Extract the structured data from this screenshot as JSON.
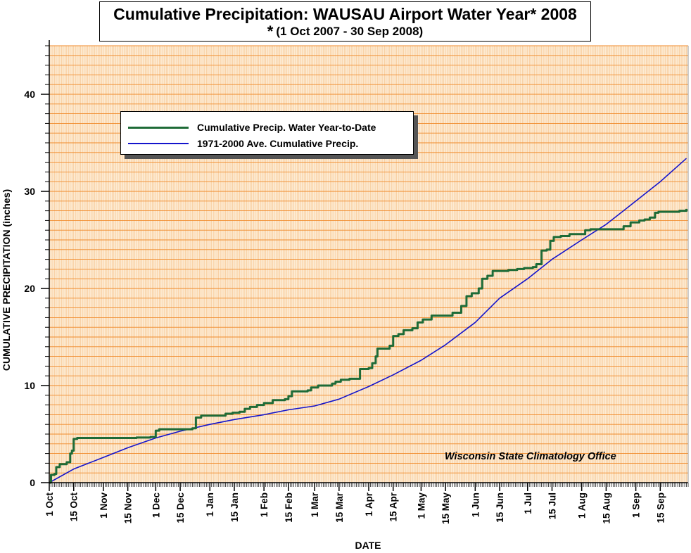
{
  "title": "Cumulative Precipitation: WAUSAU Airport Water Year* 2008",
  "subtitle_marker": "*",
  "subtitle": "(1 Oct 2007 - 30 Sep 2008)",
  "credit": "Wisconsin State Climatology Office",
  "colors": {
    "plot_background": "#fdebd3",
    "grid_vertical": "#f6c28a",
    "grid_horizontal": "#f08a2a",
    "observed": "#1e6b37",
    "normal": "#1414cc"
  },
  "chart_data": {
    "type": "line",
    "title": "Cumulative Precipitation: WAUSAU Airport Water Year* 2008",
    "subtitle": "(1 Oct 2007 - 30 Sep 2008)",
    "xlabel": "DATE",
    "ylabel": "CUMULATIVE PRECIPITATION (inches)",
    "ylim": [
      0,
      45
    ],
    "y_ticks": [
      0,
      10,
      20,
      30,
      40
    ],
    "x_range": [
      "2007-10-01",
      "2008-09-30"
    ],
    "x_ticks": [
      {
        "date": "2007-10-01",
        "label": "1 Oct"
      },
      {
        "date": "2007-10-15",
        "label": "15 Oct"
      },
      {
        "date": "2007-11-01",
        "label": "1 Nov"
      },
      {
        "date": "2007-11-15",
        "label": "15 Nov"
      },
      {
        "date": "2007-12-01",
        "label": "1 Dec"
      },
      {
        "date": "2007-12-15",
        "label": "15 Dec"
      },
      {
        "date": "2008-01-01",
        "label": "1 Jan"
      },
      {
        "date": "2008-01-15",
        "label": "15 Jan"
      },
      {
        "date": "2008-02-01",
        "label": "1 Feb"
      },
      {
        "date": "2008-02-15",
        "label": "15 Feb"
      },
      {
        "date": "2008-03-01",
        "label": "1 Mar"
      },
      {
        "date": "2008-03-15",
        "label": "15 Mar"
      },
      {
        "date": "2008-04-01",
        "label": "1 Apr"
      },
      {
        "date": "2008-04-15",
        "label": "15 Apr"
      },
      {
        "date": "2008-05-01",
        "label": "1 May"
      },
      {
        "date": "2008-05-15",
        "label": "15 May"
      },
      {
        "date": "2008-06-01",
        "label": "1 Jun"
      },
      {
        "date": "2008-06-15",
        "label": "15 Jun"
      },
      {
        "date": "2008-07-01",
        "label": "1 Jul"
      },
      {
        "date": "2008-07-15",
        "label": "15 Jul"
      },
      {
        "date": "2008-08-01",
        "label": "1 Aug"
      },
      {
        "date": "2008-08-15",
        "label": "15 Aug"
      },
      {
        "date": "2008-09-01",
        "label": "1 Sep"
      },
      {
        "date": "2008-09-15",
        "label": "15 Sep"
      }
    ],
    "grid": true,
    "legend_position": "upper-left",
    "series": [
      {
        "name": "Cumulative Precip.  Water Year-to-Date",
        "color": "#1e6b37",
        "style": "step",
        "points": [
          [
            "2007-10-01",
            0.0
          ],
          [
            "2007-10-02",
            0.8
          ],
          [
            "2007-10-04",
            0.9
          ],
          [
            "2007-10-05",
            1.6
          ],
          [
            "2007-10-07",
            1.9
          ],
          [
            "2007-10-11",
            2.1
          ],
          [
            "2007-10-13",
            3.0
          ],
          [
            "2007-10-14",
            3.3
          ],
          [
            "2007-10-15",
            4.5
          ],
          [
            "2007-10-17",
            4.6
          ],
          [
            "2007-11-20",
            4.65
          ],
          [
            "2007-11-28",
            4.7
          ],
          [
            "2007-12-01",
            5.35
          ],
          [
            "2007-12-03",
            5.5
          ],
          [
            "2007-12-22",
            5.6
          ],
          [
            "2007-12-24",
            6.7
          ],
          [
            "2007-12-27",
            6.9
          ],
          [
            "2008-01-10",
            7.1
          ],
          [
            "2008-01-14",
            7.2
          ],
          [
            "2008-01-18",
            7.3
          ],
          [
            "2008-01-21",
            7.6
          ],
          [
            "2008-01-24",
            7.8
          ],
          [
            "2008-01-28",
            8.0
          ],
          [
            "2008-02-01",
            8.2
          ],
          [
            "2008-02-06",
            8.5
          ],
          [
            "2008-02-13",
            8.6
          ],
          [
            "2008-02-15",
            8.9
          ],
          [
            "2008-02-17",
            9.4
          ],
          [
            "2008-02-26",
            9.5
          ],
          [
            "2008-02-28",
            9.8
          ],
          [
            "2008-03-03",
            10.0
          ],
          [
            "2008-03-11",
            10.2
          ],
          [
            "2008-03-13",
            10.4
          ],
          [
            "2008-03-16",
            10.6
          ],
          [
            "2008-03-21",
            10.7
          ],
          [
            "2008-03-27",
            11.7
          ],
          [
            "2008-04-01",
            11.8
          ],
          [
            "2008-04-03",
            12.3
          ],
          [
            "2008-04-05",
            13.0
          ],
          [
            "2008-04-06",
            13.8
          ],
          [
            "2008-04-13",
            14.1
          ],
          [
            "2008-04-15",
            15.1
          ],
          [
            "2008-04-18",
            15.3
          ],
          [
            "2008-04-21",
            15.7
          ],
          [
            "2008-04-26",
            15.9
          ],
          [
            "2008-04-29",
            16.5
          ],
          [
            "2008-05-02",
            16.8
          ],
          [
            "2008-05-07",
            17.2
          ],
          [
            "2008-05-19",
            17.5
          ],
          [
            "2008-05-24",
            18.2
          ],
          [
            "2008-05-27",
            19.2
          ],
          [
            "2008-05-30",
            19.5
          ],
          [
            "2008-06-03",
            20.0
          ],
          [
            "2008-06-05",
            21.0
          ],
          [
            "2008-06-08",
            21.3
          ],
          [
            "2008-06-11",
            21.8
          ],
          [
            "2008-06-20",
            21.9
          ],
          [
            "2008-06-25",
            22.0
          ],
          [
            "2008-06-29",
            22.1
          ],
          [
            "2008-07-04",
            22.2
          ],
          [
            "2008-07-06",
            22.5
          ],
          [
            "2008-07-09",
            23.9
          ],
          [
            "2008-07-12",
            24.0
          ],
          [
            "2008-07-14",
            24.9
          ],
          [
            "2008-07-16",
            25.3
          ],
          [
            "2008-07-20",
            25.4
          ],
          [
            "2008-07-25",
            25.6
          ],
          [
            "2008-08-03",
            26.0
          ],
          [
            "2008-08-06",
            26.1
          ],
          [
            "2008-08-25",
            26.4
          ],
          [
            "2008-08-29",
            26.8
          ],
          [
            "2008-09-03",
            27.0
          ],
          [
            "2008-09-06",
            27.1
          ],
          [
            "2008-09-09",
            27.3
          ],
          [
            "2008-09-12",
            27.8
          ],
          [
            "2008-09-14",
            27.9
          ],
          [
            "2008-09-26",
            28.0
          ],
          [
            "2008-09-30",
            28.2
          ]
        ]
      },
      {
        "name": "1971-2000 Ave. Cumulative Precip.",
        "color": "#1414cc",
        "style": "line",
        "points": [
          [
            "2007-10-01",
            0.0
          ],
          [
            "2007-10-15",
            1.4
          ],
          [
            "2007-11-01",
            2.6
          ],
          [
            "2007-11-15",
            3.6
          ],
          [
            "2007-12-01",
            4.6
          ],
          [
            "2007-12-15",
            5.3
          ],
          [
            "2008-01-01",
            6.0
          ],
          [
            "2008-01-15",
            6.5
          ],
          [
            "2008-02-01",
            7.0
          ],
          [
            "2008-02-15",
            7.5
          ],
          [
            "2008-03-01",
            7.9
          ],
          [
            "2008-03-15",
            8.6
          ],
          [
            "2008-04-01",
            9.9
          ],
          [
            "2008-04-15",
            11.1
          ],
          [
            "2008-05-01",
            12.6
          ],
          [
            "2008-05-15",
            14.2
          ],
          [
            "2008-06-01",
            16.5
          ],
          [
            "2008-06-15",
            19.0
          ],
          [
            "2008-07-01",
            21.0
          ],
          [
            "2008-07-15",
            23.0
          ],
          [
            "2008-08-01",
            25.0
          ],
          [
            "2008-08-15",
            26.6
          ],
          [
            "2008-09-01",
            29.0
          ],
          [
            "2008-09-15",
            31.0
          ],
          [
            "2008-09-30",
            33.4
          ]
        ]
      }
    ]
  }
}
